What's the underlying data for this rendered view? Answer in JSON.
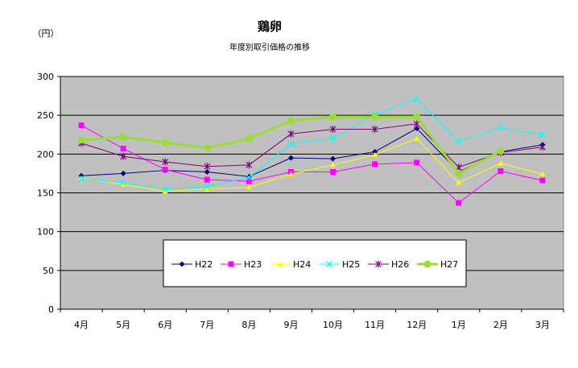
{
  "chart_data": {
    "type": "line",
    "title": "鶏卵",
    "subtitle": "年度別取引価格の推移",
    "ylabel": "（円）",
    "ylim": [
      0,
      300
    ],
    "yticks": [
      0,
      50,
      100,
      150,
      200,
      250,
      300
    ],
    "grid": true,
    "legend_position": "center-bottom",
    "categories": [
      "4月",
      "5月",
      "6月",
      "7月",
      "8月",
      "9月",
      "10月",
      "11月",
      "12月",
      "1月",
      "2月",
      "3月"
    ],
    "series": [
      {
        "name": "H22",
        "color": "#000080",
        "marker": "diamond",
        "values": [
          172,
          175,
          179,
          177,
          171,
          195,
          194,
          203,
          233,
          177,
          203,
          212
        ]
      },
      {
        "name": "H23",
        "color": "#ff00ff",
        "marker": "square",
        "values": [
          237,
          207,
          180,
          167,
          165,
          177,
          177,
          187,
          189,
          137,
          178,
          166
        ]
      },
      {
        "name": "H24",
        "color": "#ffff00",
        "marker": "triangle",
        "values": [
          169,
          161,
          152,
          155,
          157,
          174,
          186,
          199,
          220,
          163,
          188,
          174
        ]
      },
      {
        "name": "H25",
        "color": "#00ffff",
        "marker": "x",
        "values": [
          168,
          163,
          155,
          158,
          170,
          213,
          220,
          251,
          271,
          216,
          234,
          225
        ]
      },
      {
        "name": "H26",
        "color": "#800080",
        "marker": "star",
        "values": [
          214,
          197,
          190,
          184,
          186,
          226,
          232,
          232,
          239,
          183,
          202,
          209
        ]
      },
      {
        "name": "H27",
        "color": "#99dd33",
        "marker": "circle",
        "bold": true,
        "values": [
          218,
          222,
          215,
          208,
          220,
          243,
          248,
          248,
          248,
          175,
          204,
          null
        ]
      }
    ]
  }
}
